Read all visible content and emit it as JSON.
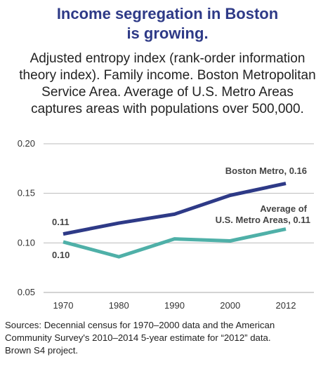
{
  "title_line1": "Income segregation in Boston",
  "title_line2": "is growing.",
  "subtitle_lines": [
    "Adjusted entropy index (rank-order information",
    "theory index). Family income. Boston Metropolitan",
    "Service Area. Average of U.S. Metro Areas",
    "captures areas with populations over 500,000."
  ],
  "source_lines": [
    "Sources: Decennial census for 1970–2000 data and the American",
    "Community Survey's 2010–2014 5-year estimate for “2012” data.",
    "Brown S4 project."
  ],
  "colors": {
    "title": "#2e3a87",
    "boston": "#2e3a87",
    "average": "#4fb0a8",
    "grid": "#bbbbbb"
  },
  "chart_data": {
    "type": "line",
    "categories": [
      "1970",
      "1980",
      "1990",
      "2000",
      "2012"
    ],
    "ylim": [
      0.05,
      0.2
    ],
    "yticks": [
      "0.20",
      "0.15",
      "0.10",
      "0.05"
    ],
    "ytick_values": [
      0.2,
      0.15,
      0.1,
      0.05
    ],
    "grid": true,
    "series": [
      {
        "name": "Boston Metro",
        "values": [
          0.109,
          0.12,
          0.129,
          0.148,
          0.16
        ],
        "color": "#2e3a87",
        "end_label": "Boston Metro, 0.16",
        "start_label": "0.11"
      },
      {
        "name": "Average of U.S. Metro Areas",
        "values": [
          0.101,
          0.086,
          0.104,
          0.102,
          0.114
        ],
        "color": "#4fb0a8",
        "end_label_lines": [
          "Average of",
          "U.S. Metro Areas, 0.11"
        ],
        "start_label": "0.10"
      }
    ]
  }
}
